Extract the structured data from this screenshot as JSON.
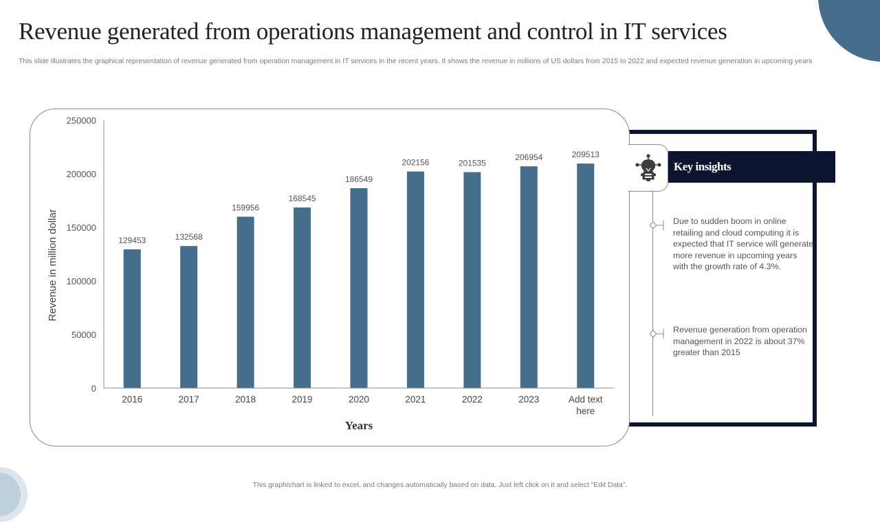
{
  "slide": {
    "title": "Revenue generated from operations management and control in IT services",
    "subtitle": "This slide illustrates the graphical representation of revenue generated from operation management in IT services in the recent years. It shows the revenue in millions of US dollars from 2015 to 2022 and expected revenue generation in upcoming years",
    "footer_note": "This graph/chart is linked to excel, and changes automatically based on data. Just left click on it and select “Edit Data”."
  },
  "colors": {
    "bar": "#456d8c",
    "accent_navy": "#0b1530",
    "corner_accent": "#456d8c"
  },
  "insights": {
    "header": "Key insights",
    "icon": "lightbulb-gear-icon",
    "items": [
      "Due to sudden boom in online retailing and cloud computing it is expected that IT service will generate more revenue in upcoming years with the growth rate of 4.3%.",
      "Revenue generation from operation management in 2022 is about 37% greater than 2015"
    ]
  },
  "chart_data": {
    "type": "bar",
    "title": "",
    "xlabel": "Years",
    "ylabel": "Revenue in million dollar",
    "categories": [
      "2016",
      "2017",
      "2018",
      "2019",
      "2020",
      "2021",
      "2022",
      "2023",
      "Add text here"
    ],
    "values": [
      129453,
      132568,
      159956,
      168545,
      186549,
      202156,
      201535,
      206954,
      209513
    ],
    "data_labels": [
      "129453",
      "132568",
      "159956",
      "168545",
      "186549",
      "202156",
      "201535",
      "206954",
      "209513"
    ],
    "ylim": [
      0,
      250000
    ],
    "yticks": [
      0,
      50000,
      100000,
      150000,
      200000,
      250000
    ],
    "ytick_labels": [
      "0",
      "50000",
      "100000",
      "150000",
      "200000",
      "250000"
    ],
    "grid": false,
    "legend": "none"
  }
}
